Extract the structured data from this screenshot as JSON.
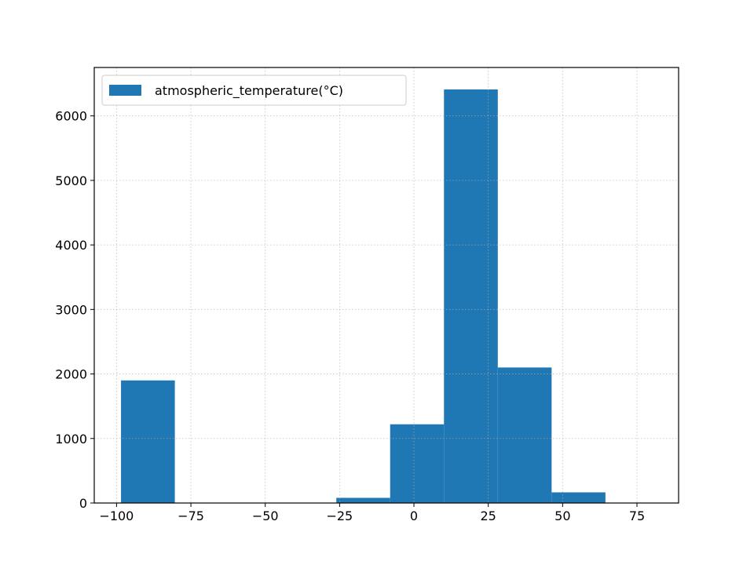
{
  "chart_data": {
    "type": "bar",
    "subtype": "histogram",
    "title": "",
    "xlabel": "",
    "ylabel": "",
    "xlim": [
      -107.5,
      89.0
    ],
    "ylim": [
      0,
      6750
    ],
    "grid": true,
    "legend_position": "top-left",
    "bar_color": "#1f77b4",
    "series": [
      {
        "name": "atmospheric_temperature(°C)",
        "bins": [
          {
            "x0": -98.5,
            "x1": -80.4,
            "value": 1900
          },
          {
            "x0": -80.4,
            "x1": -62.3,
            "value": 0
          },
          {
            "x0": -62.3,
            "x1": -44.2,
            "value": 0
          },
          {
            "x0": -44.2,
            "x1": -26.1,
            "value": 0
          },
          {
            "x0": -26.1,
            "x1": -8.0,
            "value": 80
          },
          {
            "x0": -8.0,
            "x1": 10.1,
            "value": 1220
          },
          {
            "x0": 10.1,
            "x1": 28.2,
            "value": 6410
          },
          {
            "x0": 28.2,
            "x1": 46.3,
            "value": 2100
          },
          {
            "x0": 46.3,
            "x1": 64.4,
            "value": 165
          },
          {
            "x0": 64.4,
            "x1": 82.5,
            "value": 0
          }
        ]
      }
    ],
    "x_ticks": [
      -100,
      -75,
      -50,
      -25,
      0,
      25,
      50,
      75
    ],
    "x_tick_labels": [
      "−100",
      "−75",
      "−50",
      "−25",
      "0",
      "25",
      "50",
      "75"
    ],
    "y_ticks": [
      0,
      1000,
      2000,
      3000,
      4000,
      5000,
      6000
    ],
    "y_tick_labels": [
      "0",
      "1000",
      "2000",
      "3000",
      "4000",
      "5000",
      "6000"
    ]
  }
}
